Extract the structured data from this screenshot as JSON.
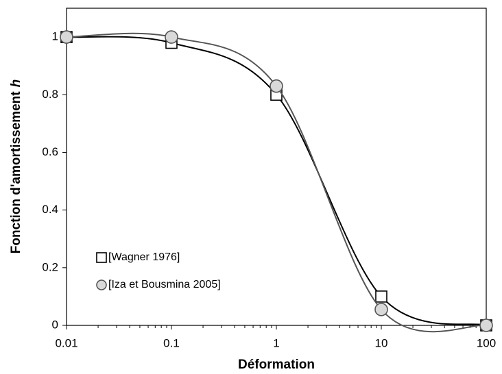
{
  "chart_data": {
    "type": "line",
    "xlabel": "Déformation",
    "ylabel": "Fonction d'amortissement",
    "ylabel_symbol": "h",
    "x": [
      0.01,
      0.1,
      1,
      10,
      100
    ],
    "xlog": true,
    "xlim": [
      0.01,
      100
    ],
    "xticks": [
      0.01,
      0.1,
      1,
      10,
      100
    ],
    "ylim": [
      0,
      1.1
    ],
    "yticks": [
      0,
      0.2,
      0.4,
      0.6,
      0.8,
      1
    ],
    "grid": false,
    "legend": "lower left",
    "series": [
      {
        "name": "[Wagner 1976]",
        "color": "#000000",
        "marker": "square",
        "values": [
          1,
          0.98,
          0.8,
          0.1,
          0
        ]
      },
      {
        "name": "[Iza et Bousmina 2005]",
        "color": "#555555",
        "marker": "circle",
        "values": [
          1,
          1,
          0.83,
          0.055,
          0
        ]
      }
    ]
  }
}
